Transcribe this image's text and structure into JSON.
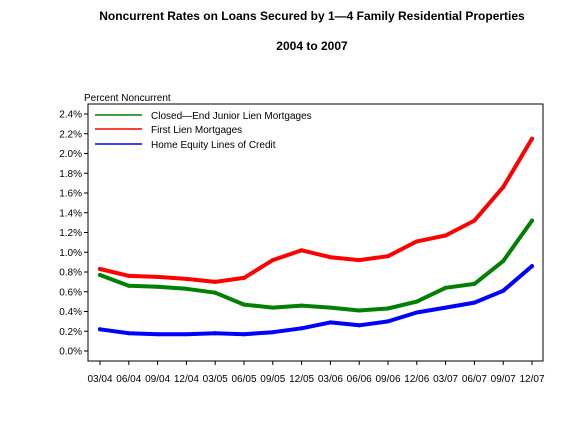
{
  "chart_data": {
    "type": "line",
    "title": "Noncurrent Rates on Loans Secured by 1—4 Family Residential Properties",
    "subtitle": "2004 to 2007",
    "ylabel": "Percent Noncurrent",
    "xlabel": "",
    "ylim": [
      0,
      2.4
    ],
    "y_ticks": [
      "0.0%",
      "0.2%",
      "0.4%",
      "0.6%",
      "0.8%",
      "1.0%",
      "1.2%",
      "1.4%",
      "1.6%",
      "1.8%",
      "2.0%",
      "2.2%",
      "2.4%"
    ],
    "categories": [
      "03/04",
      "06/04",
      "09/04",
      "12/04",
      "03/05",
      "06/05",
      "09/05",
      "12/05",
      "03/06",
      "06/06",
      "09/06",
      "12/06",
      "03/07",
      "06/07",
      "09/07",
      "12/07"
    ],
    "legend_position": "top-left",
    "series": [
      {
        "name": "Closed—End Junior Lien Mortgages",
        "color": "#008000",
        "values": [
          0.77,
          0.66,
          0.65,
          0.63,
          0.59,
          0.47,
          0.44,
          0.46,
          0.44,
          0.41,
          0.43,
          0.5,
          0.64,
          0.68,
          0.91,
          1.32
        ]
      },
      {
        "name": "First Lien Mortgages",
        "color": "#ff0000",
        "values": [
          0.83,
          0.76,
          0.75,
          0.73,
          0.7,
          0.74,
          0.92,
          1.02,
          0.95,
          0.92,
          0.96,
          1.11,
          1.17,
          1.32,
          1.66,
          2.15
        ]
      },
      {
        "name": "Home Equity Lines of Credit",
        "color": "#0000ff",
        "values": [
          0.22,
          0.18,
          0.17,
          0.17,
          0.18,
          0.17,
          0.19,
          0.23,
          0.29,
          0.26,
          0.3,
          0.39,
          0.44,
          0.49,
          0.61,
          0.86
        ]
      }
    ]
  }
}
